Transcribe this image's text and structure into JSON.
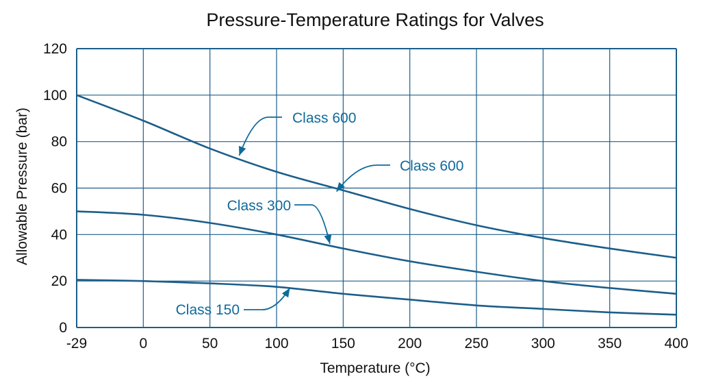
{
  "chart_data": {
    "type": "line",
    "title": "Pressure-Temperature Ratings for Valves",
    "xlabel": "Temperature (°C)",
    "ylabel": "Allowable Pressure (bar)",
    "x_ticks": [
      "-29",
      "0",
      "50",
      "100",
      "150",
      "200",
      "250",
      "300",
      "350",
      "400"
    ],
    "y_ticks": [
      "0",
      "20",
      "40",
      "60",
      "80",
      "100",
      "120"
    ],
    "ylim": [
      0,
      120
    ],
    "grid": true,
    "legend": "none",
    "colors": {
      "curve": "#1b5e8a",
      "grid": "#1b5e8a",
      "annotation": "#0e6a9b"
    },
    "series": [
      {
        "name": "Class 600",
        "x": [
          -29,
          0,
          50,
          100,
          150,
          200,
          250,
          300,
          350,
          400
        ],
        "y": [
          100,
          89,
          77,
          67,
          59,
          51,
          44,
          38.5,
          34,
          30
        ]
      },
      {
        "name": "Class 300",
        "x": [
          -29,
          0,
          50,
          100,
          150,
          200,
          250,
          300,
          350,
          400
        ],
        "y": [
          50,
          48.5,
          45,
          40,
          34,
          28.5,
          24,
          20,
          17,
          14.5
        ]
      },
      {
        "name": "Class 150",
        "x": [
          -29,
          0,
          50,
          100,
          150,
          200,
          250,
          300,
          350,
          400
        ],
        "y": [
          20.5,
          20,
          19,
          17.5,
          14.5,
          12,
          9.5,
          8,
          6.5,
          5.5
        ]
      }
    ],
    "annotations": [
      {
        "text": "Class 600",
        "x": 72,
        "y": 74
      },
      {
        "text": "Class 600",
        "x": 145,
        "y": 58.5
      },
      {
        "text": "Class 300",
        "x": 140,
        "y": 36
      },
      {
        "text": "Class 150",
        "x": 110,
        "y": 17
      }
    ]
  }
}
